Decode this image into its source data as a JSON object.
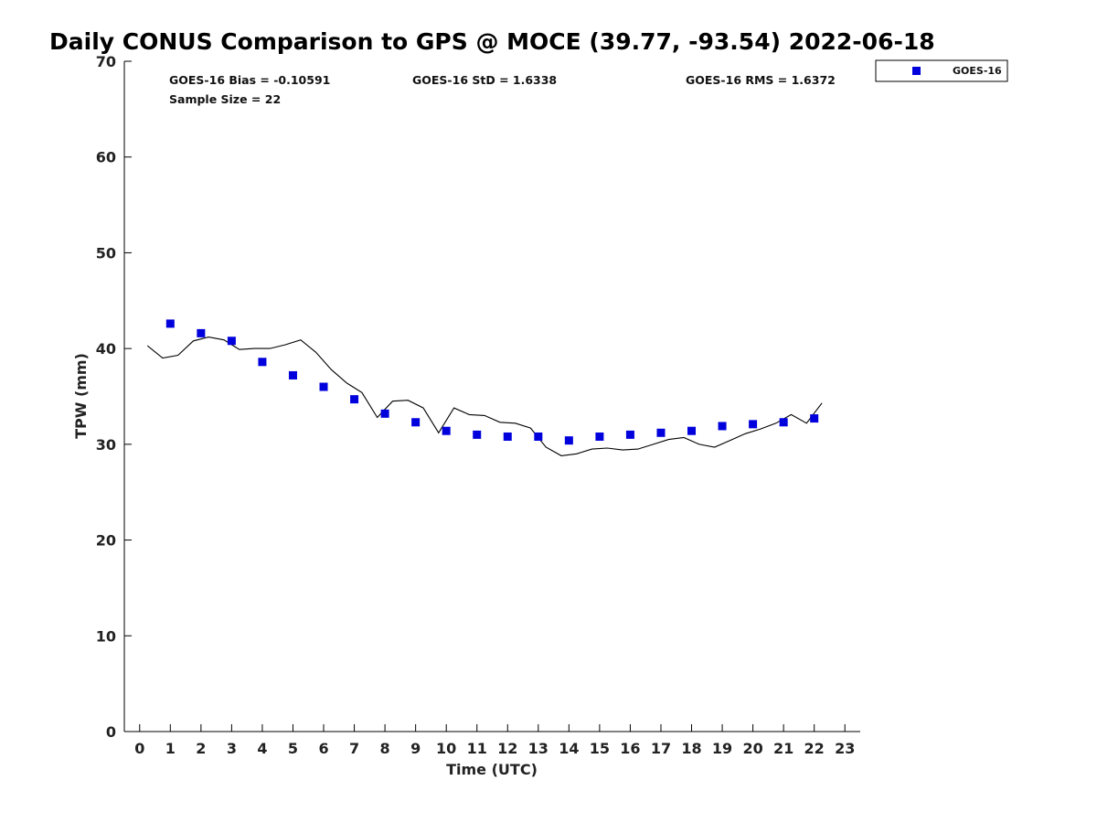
{
  "chart_data": {
    "type": "scatter",
    "title": "Daily CONUS Comparison to GPS @ MOCE (39.77, -93.54) 2022-06-18",
    "xlabel": "Time (UTC)",
    "ylabel": "TPW (mm)",
    "xlim": [
      -0.5,
      23.5
    ],
    "ylim": [
      0,
      70
    ],
    "xticks": [
      0,
      1,
      2,
      3,
      4,
      5,
      6,
      7,
      8,
      9,
      10,
      11,
      12,
      13,
      14,
      15,
      16,
      17,
      18,
      19,
      20,
      21,
      22,
      23
    ],
    "yticks": [
      0,
      10,
      20,
      30,
      40,
      50,
      60,
      70
    ],
    "grid": false,
    "legend_position": "top-right",
    "stats": {
      "bias": "GOES-16 Bias = -0.10591",
      "std": "GOES-16 StD = 1.6338",
      "rms": "GOES-16 RMS = 1.6372",
      "sample": "Sample Size = 22"
    },
    "series": [
      {
        "name": "GOES-16",
        "type": "scatter",
        "color": "#0000dd",
        "marker": "square",
        "x": [
          1,
          2,
          3,
          4,
          5,
          6,
          7,
          8,
          9,
          10,
          11,
          12,
          13,
          14,
          15,
          16,
          17,
          18,
          19,
          20,
          21,
          22
        ],
        "y": [
          42.6,
          41.6,
          40.8,
          38.6,
          37.2,
          36.0,
          34.7,
          33.2,
          32.3,
          31.4,
          31.0,
          30.8,
          30.8,
          30.4,
          30.8,
          31.0,
          31.2,
          31.4,
          31.9,
          32.1,
          32.3,
          32.7
        ]
      },
      {
        "type": "line",
        "color": "#000000",
        "x": [
          0.25,
          0.75,
          1.25,
          1.75,
          2.25,
          2.75,
          3.25,
          3.75,
          4.25,
          4.75,
          5.25,
          5.75,
          6.25,
          6.75,
          7.25,
          7.75,
          8.25,
          8.75,
          9.25,
          9.75,
          10.25,
          10.75,
          11.25,
          11.75,
          12.25,
          12.75,
          13.25,
          13.75,
          14.25,
          14.75,
          15.25,
          15.75,
          16.25,
          16.75,
          17.25,
          17.75,
          18.25,
          18.75,
          19.25,
          19.75,
          20.25,
          20.75,
          21.25,
          21.75,
          22.25
        ],
        "y": [
          40.3,
          39.0,
          39.3,
          40.8,
          41.2,
          40.9,
          39.9,
          40.0,
          40.0,
          40.4,
          40.9,
          39.6,
          37.8,
          36.4,
          35.4,
          32.8,
          34.5,
          34.6,
          33.8,
          31.2,
          33.8,
          33.1,
          33.0,
          32.3,
          32.2,
          31.7,
          29.7,
          28.8,
          29.0,
          29.5,
          29.6,
          29.4,
          29.5,
          30.0,
          30.5,
          30.7,
          30.0,
          29.7,
          30.4,
          31.1,
          31.6,
          32.2,
          33.1,
          32.2,
          34.3
        ]
      }
    ]
  }
}
